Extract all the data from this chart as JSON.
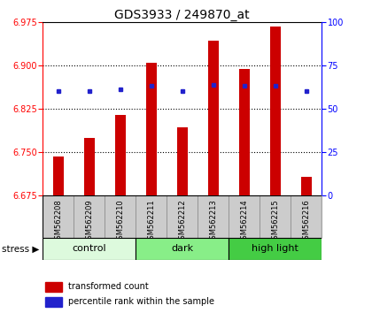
{
  "title": "GDS3933 / 249870_at",
  "samples": [
    "GSM562208",
    "GSM562209",
    "GSM562210",
    "GSM562211",
    "GSM562212",
    "GSM562213",
    "GSM562214",
    "GSM562215",
    "GSM562216"
  ],
  "transformed_counts": [
    6.743,
    6.775,
    6.815,
    6.905,
    6.793,
    6.942,
    6.893,
    6.967,
    6.707
  ],
  "percentile_ranks": [
    60,
    60,
    61,
    63,
    60,
    64,
    63,
    63,
    60
  ],
  "ylim_left": [
    6.675,
    6.975
  ],
  "ylim_right": [
    0,
    100
  ],
  "yticks_left": [
    6.675,
    6.75,
    6.825,
    6.9,
    6.975
  ],
  "yticks_right": [
    0,
    25,
    50,
    75,
    100
  ],
  "bar_color": "#cc0000",
  "dot_color": "#2222cc",
  "bar_bottom": 6.675,
  "groups": [
    {
      "label": "control",
      "start": 0,
      "end": 3,
      "color": "#ddfadd"
    },
    {
      "label": "dark",
      "start": 3,
      "end": 6,
      "color": "#88ee88"
    },
    {
      "label": "high light",
      "start": 6,
      "end": 9,
      "color": "#44cc44"
    }
  ],
  "group_label": "stress",
  "background_color": "#ffffff",
  "sample_area_color": "#cccccc",
  "title_fontsize": 10,
  "tick_fontsize": 7,
  "label_fontsize": 6,
  "group_fontsize": 8,
  "legend_fontsize": 7
}
